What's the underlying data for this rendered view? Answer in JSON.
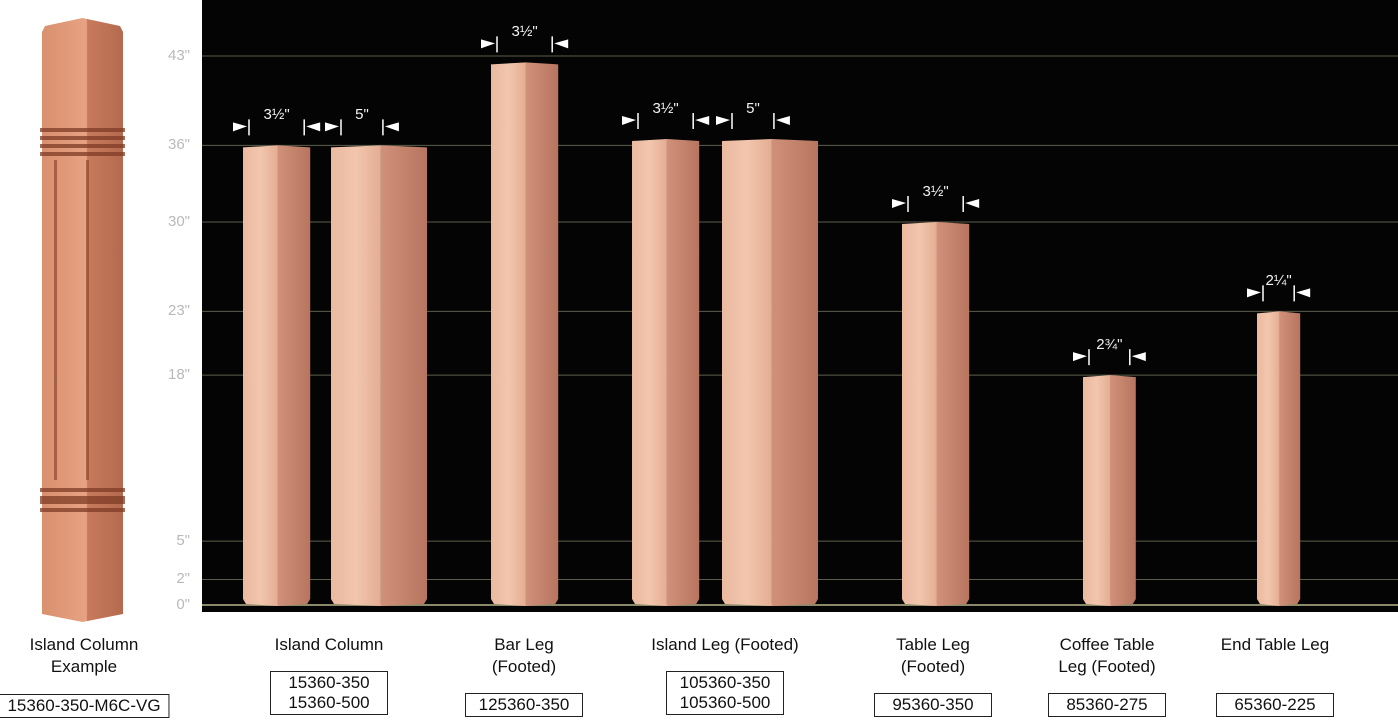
{
  "y_ticks": [
    "0\"",
    "2\"",
    "5\"",
    "18\"",
    "23\"",
    "30\"",
    "36\"",
    "43\""
  ],
  "example": {
    "caption": [
      "Island Column",
      "Example"
    ],
    "code": "15360-350-M6C-VG"
  },
  "groups": [
    {
      "caption": [
        "Island Column"
      ],
      "codes": [
        "15360-350",
        "15360-500"
      ]
    },
    {
      "caption": [
        "Bar Leg",
        "(Footed)"
      ],
      "codes": [
        "125360-350"
      ]
    },
    {
      "caption": [
        "Island Leg (Footed)"
      ],
      "codes": [
        "105360-350",
        "105360-500"
      ]
    },
    {
      "caption": [
        "Table Leg",
        "(Footed)"
      ],
      "codes": [
        "95360-350"
      ]
    },
    {
      "caption": [
        "Coffee Table",
        "Leg (Footed)"
      ],
      "codes": [
        "85360-275"
      ]
    },
    {
      "caption": [
        "End Table Leg"
      ],
      "codes": [
        "65360-225"
      ]
    }
  ],
  "chart_data": {
    "type": "bar",
    "ylabel": "",
    "y_unit": "inches",
    "y_ticks": [
      0,
      2,
      5,
      18,
      23,
      30,
      36,
      43
    ],
    "ylim": [
      0,
      47
    ],
    "grid": true,
    "bars": [
      {
        "height": 36,
        "width_label": "3½\"",
        "width_in": 3.5,
        "group": 0
      },
      {
        "height": 36,
        "width_label": "5\"",
        "width_in": 5,
        "group": 0
      },
      {
        "height": 42.5,
        "width_label": "3½\"",
        "width_in": 3.5,
        "group": 1
      },
      {
        "height": 36.5,
        "width_label": "3½\"",
        "width_in": 3.5,
        "group": 2
      },
      {
        "height": 36.5,
        "width_label": "5\"",
        "width_in": 5,
        "group": 2
      },
      {
        "height": 30,
        "width_label": "3½\"",
        "width_in": 3.5,
        "group": 3
      },
      {
        "height": 18,
        "width_label": "2¾\"",
        "width_in": 2.75,
        "group": 4
      },
      {
        "height": 23,
        "width_label": "2¼\"",
        "width_in": 2.25,
        "group": 5
      }
    ]
  },
  "colors": {
    "background": "#040404",
    "gridline": "#6a6a5a",
    "wood_light": "#e8b59a",
    "wood_dark": "#c2826a",
    "text": "#111111"
  }
}
